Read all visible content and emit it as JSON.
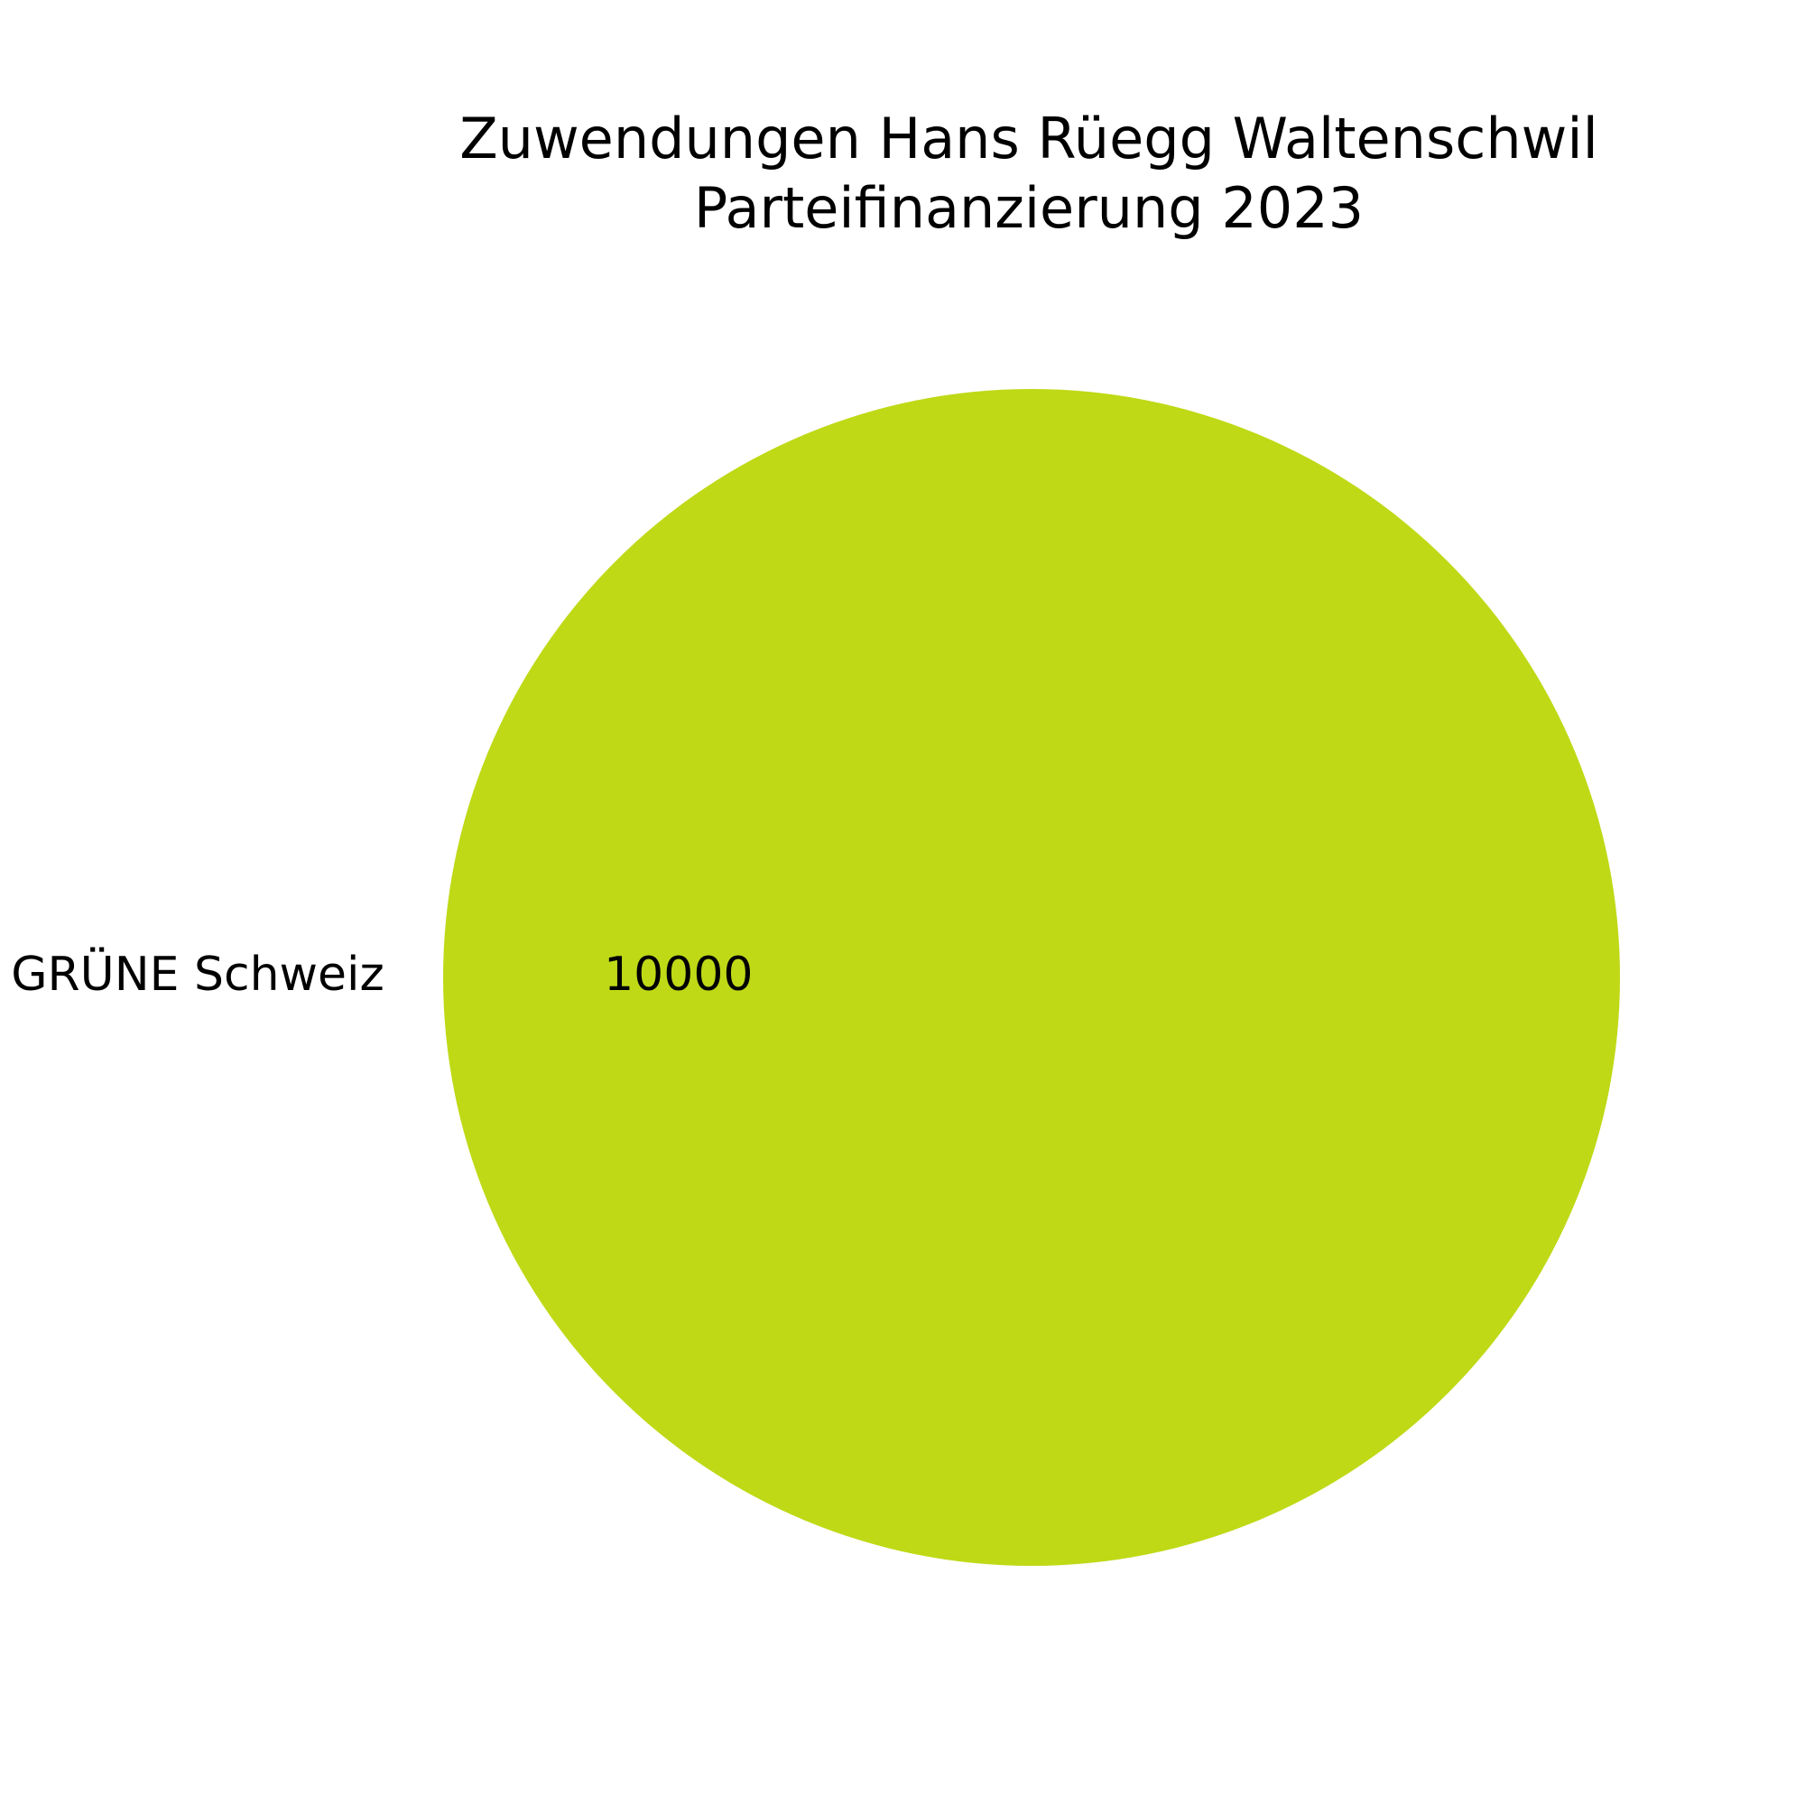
{
  "chart_data": {
    "type": "pie",
    "title": [
      "Zuwendungen Hans Rüegg Waltenschwil",
      "Parteifinanzierung 2023"
    ],
    "slices": [
      {
        "label": "GRÜNE Schweiz",
        "value": 10000,
        "value_label": "10000",
        "color": "#bfd916"
      }
    ],
    "legend": false
  }
}
